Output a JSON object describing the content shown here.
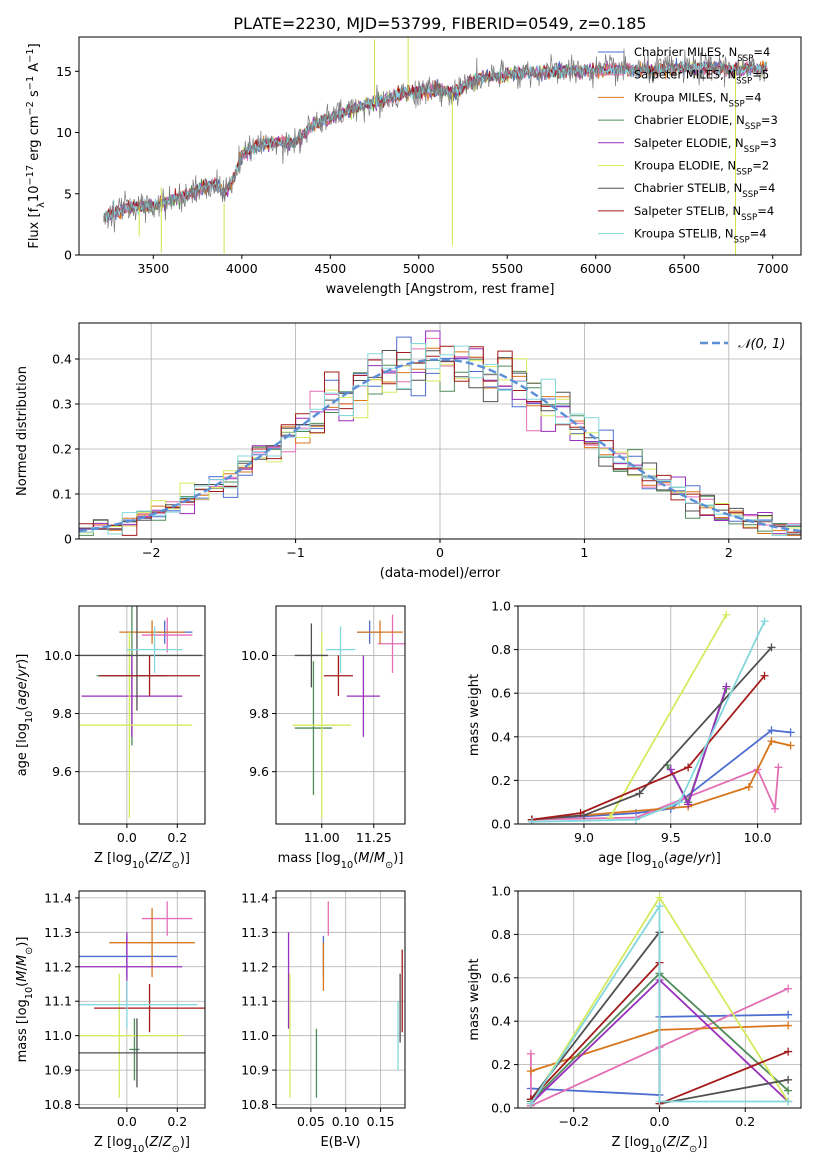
{
  "title": "PLATE=2230, MJD=53799, FIBERID=0549, z=0.185",
  "colors": {
    "Chabrier MILES": "#4c6ed0",
    "Salpeter MILES": "#e36fb5",
    "Kroupa MILES": "#d9761c",
    "Chabrier ELODIE": "#4f8c5a",
    "Salpeter ELODIE": "#9a2fbd",
    "Kroupa ELODIE": "#d6ea5e",
    "Chabrier STELIB": "#505050",
    "Salpeter STELIB": "#a31b1b",
    "Kroupa STELIB": "#84d7dc"
  },
  "legend_labels": [
    "Chabrier MILES, N<sub>SSP</sub>=4",
    "Salpeter MILES, N<sub>SSP</sub>=5",
    "Kroupa MILES, N<sub>SSP</sub>=4",
    "Chabrier ELODIE, N<sub>SSP</sub>=3",
    "Salpeter ELODIE, N<sub>SSP</sub>=3",
    "Kroupa ELODIE, N<sub>SSP</sub>=2",
    "Chabrier STELIB, N<sub>SSP</sub>=4",
    "Salpeter STELIB, N<sub>SSP</sub>=4",
    "Kroupa STELIB, N<sub>SSP</sub>=4"
  ],
  "hist_legend": "𝒩(0, 1)",
  "chart_data": [
    {
      "id": "spectrum",
      "type": "line",
      "title": "PLATE=2230, MJD=53799, FIBERID=0549, z=0.185",
      "xlabel": "wavelength [Angstrom, rest frame]",
      "ylabel": "Flux [f<sub>λ</sub>10<sup>−17</sup> erg cm<sup>−2</sup> s<sup>−1</sup> A<sup>−1</sup>]",
      "xlim": [
        3080,
        7160
      ],
      "ylim": [
        0,
        17.8
      ],
      "xticks": [
        3500,
        4000,
        4500,
        5000,
        5500,
        6000,
        6500,
        7000
      ],
      "yticks": [
        0,
        5,
        10,
        15
      ],
      "legend_position": "top-right",
      "continuum": [
        [
          3220,
          3.1
        ],
        [
          3300,
          3.6
        ],
        [
          3400,
          4.0
        ],
        [
          3500,
          4.0
        ],
        [
          3600,
          4.5
        ],
        [
          3700,
          5.0
        ],
        [
          3800,
          5.6
        ],
        [
          3850,
          5.8
        ],
        [
          3900,
          5.0
        ],
        [
          3930,
          5.6
        ],
        [
          3960,
          6.5
        ],
        [
          4000,
          8.2
        ],
        [
          4100,
          9.0
        ],
        [
          4200,
          9.2
        ],
        [
          4300,
          9.2
        ],
        [
          4400,
          10.6
        ],
        [
          4500,
          11.2
        ],
        [
          4600,
          11.8
        ],
        [
          4700,
          12.3
        ],
        [
          4800,
          12.6
        ],
        [
          4900,
          13.2
        ],
        [
          5000,
          13.3
        ],
        [
          5100,
          13.5
        ],
        [
          5200,
          13.2
        ],
        [
          5300,
          14.2
        ],
        [
          5400,
          14.5
        ],
        [
          5500,
          14.7
        ],
        [
          5600,
          14.9
        ],
        [
          5700,
          14.9
        ],
        [
          5800,
          15.0
        ],
        [
          5900,
          15.1
        ],
        [
          6000,
          15.0
        ],
        [
          6100,
          15.2
        ],
        [
          6200,
          15.1
        ],
        [
          6300,
          15.1
        ],
        [
          6400,
          15.2
        ],
        [
          6500,
          15.2
        ],
        [
          6600,
          15.3
        ],
        [
          6700,
          15.3
        ],
        [
          6800,
          15.1
        ],
        [
          6900,
          15.2
        ],
        [
          6970,
          15.3
        ]
      ],
      "noise_amplitude": 0.6
    },
    {
      "id": "residuals",
      "type": "histogram",
      "xlabel": "(data-model)/error",
      "ylabel": "Normed distribution",
      "xlim": [
        -2.5,
        2.5
      ],
      "ylim": [
        0,
        0.48
      ],
      "xticks": [
        -2,
        -1,
        0,
        1,
        2
      ],
      "yticks": [
        0,
        0.1,
        0.2,
        0.3,
        0.4
      ],
      "bin_width": 0.1,
      "reference": "N(0,1)",
      "legend_position": "top-right",
      "grid": true
    },
    {
      "id": "age_vs_Z",
      "type": "errorbar",
      "xlabel": "Z [log<sub>10</sub>(<tspan font-style='italic'>Z</tspan>/<tspan font-style='italic'>Z</tspan><sub>⊙</sub>)]",
      "ylabel": "age  [log<sub>10</sub>(<tspan font-style='italic'>age</tspan>/<tspan font-style='italic'>yr</tspan>)]",
      "xlim": [
        -0.19,
        0.31
      ],
      "ylim": [
        9.42,
        10.17
      ],
      "xticks": [
        0.0,
        0.2
      ],
      "xticklabels": [
        "0.0",
        "0.2"
      ],
      "yticks": [
        9.6,
        9.8,
        10.0
      ],
      "yticklabels": [
        "9.6",
        "9.8",
        "10.0"
      ],
      "grid": true,
      "points": [
        {
          "model": "Chabrier MILES",
          "x": 0.15,
          "xerr": 0.11,
          "y": 10.08,
          "yerr": 0.04
        },
        {
          "model": "Salpeter MILES",
          "x": 0.16,
          "xerr": 0.1,
          "y": 10.07,
          "yerr": 0.06
        },
        {
          "model": "Kroupa MILES",
          "x": 0.1,
          "xerr": 0.13,
          "y": 10.08,
          "yerr": 0.04
        },
        {
          "model": "Chabrier ELODIE",
          "x": 0.02,
          "xerr": 0.14,
          "y": 9.93,
          "yerr": 0.24
        },
        {
          "model": "Salpeter ELODIE",
          "x": 0.02,
          "xerr": 0.2,
          "y": 9.86,
          "yerr": 0.14
        },
        {
          "model": "Kroupa ELODIE",
          "x": 0.01,
          "xerr": 0.25,
          "y": 9.76,
          "yerr": 0.32
        },
        {
          "model": "Chabrier STELIB",
          "x": 0.04,
          "xerr": 0.26,
          "y": 10.0,
          "yerr": 0.19
        },
        {
          "model": "Salpeter STELIB",
          "x": 0.09,
          "xerr": 0.2,
          "y": 9.93,
          "yerr": 0.07
        },
        {
          "model": "Kroupa STELIB",
          "x": 0.11,
          "xerr": 0.11,
          "y": 10.02,
          "yerr": 0.08
        }
      ]
    },
    {
      "id": "age_vs_mass",
      "type": "errorbar",
      "xlabel": "mass [log<sub>10</sub>(<tspan font-style='italic'>M</tspan>/<tspan font-style='italic'>M</tspan><sub>⊙</sub>)]",
      "ylabel": "",
      "xlim": [
        10.78,
        11.4
      ],
      "ylim": [
        9.42,
        10.17
      ],
      "xticks": [
        11.0,
        11.25
      ],
      "xticklabels": [
        "11.00",
        "11.25"
      ],
      "yticks": [
        9.6,
        9.8,
        10.0
      ],
      "yticklabels": [
        "9.6",
        "9.8",
        "10.0"
      ],
      "grid": true,
      "points": [
        {
          "model": "Chabrier MILES",
          "x": 11.23,
          "xerr": 0.06,
          "y": 10.08,
          "yerr": 0.04
        },
        {
          "model": "Salpeter MILES",
          "x": 11.34,
          "xerr": 0.07,
          "y": 10.04,
          "yerr": 0.1
        },
        {
          "model": "Kroupa MILES",
          "x": 11.28,
          "xerr": 0.11,
          "y": 10.08,
          "yerr": 0.04
        },
        {
          "model": "Chabrier ELODIE",
          "x": 10.96,
          "xerr": 0.09,
          "y": 9.75,
          "yerr": 0.23
        },
        {
          "model": "Salpeter ELODIE",
          "x": 11.2,
          "xerr": 0.08,
          "y": 9.86,
          "yerr": 0.14
        },
        {
          "model": "Kroupa ELODIE",
          "x": 11.0,
          "xerr": 0.14,
          "y": 9.76,
          "yerr": 0.32
        },
        {
          "model": "Chabrier STELIB",
          "x": 10.95,
          "xerr": 0.08,
          "y": 10.0,
          "yerr": 0.11
        },
        {
          "model": "Salpeter STELIB",
          "x": 11.08,
          "xerr": 0.07,
          "y": 9.93,
          "yerr": 0.07
        },
        {
          "model": "Kroupa STELIB",
          "x": 11.09,
          "xerr": 0.07,
          "y": 10.02,
          "yerr": 0.08
        }
      ]
    },
    {
      "id": "weight_vs_age",
      "type": "line",
      "xlabel": "age  [log<sub>10</sub>(<tspan font-style='italic'>age</tspan>/<tspan font-style='italic'>yr</tspan>)]",
      "ylabel": "mass weight",
      "xlim": [
        8.62,
        10.25
      ],
      "ylim": [
        0,
        1.0
      ],
      "xticks": [
        9.0,
        9.5,
        10.0
      ],
      "xticklabels": [
        "9.0",
        "9.5",
        "10.0"
      ],
      "yticks": [
        0,
        0.2,
        0.4,
        0.6,
        0.8,
        1.0
      ],
      "yticklabels": [
        "0.0",
        "0.2",
        "0.4",
        "0.6",
        "0.8",
        "1.0"
      ],
      "grid": true,
      "series": [
        {
          "model": "Chabrier MILES",
          "x": [
            8.7,
            9.3,
            9.5,
            10.08,
            10.19
          ],
          "y": [
            0.02,
            0.05,
            0.07,
            0.43,
            0.42
          ]
        },
        {
          "model": "Salpeter MILES",
          "x": [
            8.7,
            9.3,
            10.0,
            10.1,
            10.12
          ],
          "y": [
            0.02,
            0.03,
            0.25,
            0.07,
            0.26
          ]
        },
        {
          "model": "Kroupa MILES",
          "x": [
            8.7,
            9.6,
            9.95,
            10.08,
            10.19
          ],
          "y": [
            0.02,
            0.08,
            0.17,
            0.38,
            0.36
          ]
        },
        {
          "model": "Chabrier ELODIE",
          "x": [
            9.48,
            9.6,
            9.82
          ],
          "y": [
            0.27,
            0.1,
            0.62
          ]
        },
        {
          "model": "Salpeter ELODIE",
          "x": [
            9.5,
            9.6,
            9.82
          ],
          "y": [
            0.25,
            0.09,
            0.63
          ]
        },
        {
          "model": "Kroupa ELODIE",
          "x": [
            9.15,
            9.82
          ],
          "y": [
            0.03,
            0.96
          ]
        },
        {
          "model": "Chabrier STELIB",
          "x": [
            8.7,
            9.0,
            9.32,
            10.08
          ],
          "y": [
            0.02,
            0.04,
            0.14,
            0.81
          ]
        },
        {
          "model": "Salpeter STELIB",
          "x": [
            8.7,
            8.98,
            9.6,
            10.04
          ],
          "y": [
            0.02,
            0.05,
            0.26,
            0.68
          ]
        },
        {
          "model": "Kroupa STELIB",
          "x": [
            8.7,
            9.3,
            9.55,
            10.04
          ],
          "y": [
            0.01,
            0.02,
            0.1,
            0.93
          ]
        }
      ]
    },
    {
      "id": "mass_vs_Z",
      "type": "errorbar",
      "xlabel": "Z [log<sub>10</sub>(<tspan font-style='italic'>Z</tspan>/<tspan font-style='italic'>Z</tspan><sub>⊙</sub>)]",
      "ylabel": "mass [log<sub>10</sub>(<tspan font-style='italic'>M</tspan>/<tspan font-style='italic'>M</tspan><sub>⊙</sub>)]",
      "xlim": [
        -0.19,
        0.31
      ],
      "ylim": [
        10.79,
        11.42
      ],
      "xticks": [
        0.0,
        0.2
      ],
      "xticklabels": [
        "0.0",
        "0.2"
      ],
      "yticks": [
        10.8,
        10.9,
        11.0,
        11.1,
        11.2,
        11.3,
        11.4
      ],
      "yticklabels": [
        "10.8",
        "10.9",
        "11.0",
        "11.1",
        "11.2",
        "11.3",
        "11.4"
      ],
      "grid": true,
      "points": [
        {
          "model": "Chabrier MILES",
          "x": 0.0,
          "xerr": 0.2,
          "y": 11.23,
          "yerr": 0.06
        },
        {
          "model": "Salpeter MILES",
          "x": 0.16,
          "xerr": 0.1,
          "y": 11.34,
          "yerr": 0.05
        },
        {
          "model": "Kroupa MILES",
          "x": 0.1,
          "xerr": 0.17,
          "y": 11.27,
          "yerr": 0.1
        },
        {
          "model": "Chabrier ELODIE",
          "x": 0.03,
          "xerr": 0.02,
          "y": 10.96,
          "yerr": 0.09
        },
        {
          "model": "Salpeter ELODIE",
          "x": 0.0,
          "xerr": 0.22,
          "y": 11.2,
          "yerr": 0.1
        },
        {
          "model": "Kroupa ELODIE",
          "x": -0.03,
          "xerr": 0.25,
          "y": 11.0,
          "yerr": 0.18
        },
        {
          "model": "Chabrier STELIB",
          "x": 0.04,
          "xerr": 0.27,
          "y": 10.95,
          "yerr": 0.1
        },
        {
          "model": "Salpeter STELIB",
          "x": 0.09,
          "xerr": 0.22,
          "y": 11.08,
          "yerr": 0.07
        },
        {
          "model": "Kroupa STELIB",
          "x": 0.0,
          "xerr": 0.28,
          "y": 11.09,
          "yerr": 0.07
        }
      ]
    },
    {
      "id": "mass_vs_EBV",
      "type": "errorbar",
      "xlabel": "E(B-V)",
      "ylabel": "",
      "xlim": [
        0.0,
        0.185
      ],
      "ylim": [
        10.79,
        11.42
      ],
      "xticks": [
        0.05,
        0.1,
        0.15
      ],
      "xticklabels": [
        "0.05",
        "0.10",
        "0.15"
      ],
      "yticks": [
        10.8,
        10.9,
        11.0,
        11.1,
        11.2,
        11.3,
        11.4
      ],
      "yticklabels": [
        "10.8",
        "10.9",
        "11.0",
        "11.1",
        "11.2",
        "11.3",
        "11.4"
      ],
      "grid": true,
      "points": [
        {
          "model": "Chabrier MILES",
          "x": 0.068,
          "xerr": 0.0,
          "y": 11.23,
          "yerr": 0.06
        },
        {
          "model": "Salpeter MILES",
          "x": 0.075,
          "xerr": 0.0,
          "y": 11.34,
          "yerr": 0.05
        },
        {
          "model": "Kroupa MILES",
          "x": 0.068,
          "xerr": 0.0,
          "y": 11.2,
          "yerr": 0.07
        },
        {
          "model": "Chabrier ELODIE",
          "x": 0.058,
          "xerr": 0.0,
          "y": 10.92,
          "yerr": 0.1
        },
        {
          "model": "Salpeter ELODIE",
          "x": 0.018,
          "xerr": 0.0,
          "y": 11.16,
          "yerr": 0.14
        },
        {
          "model": "Kroupa ELODIE",
          "x": 0.02,
          "xerr": 0.0,
          "y": 11.0,
          "yerr": 0.18
        },
        {
          "model": "Chabrier STELIB",
          "x": 0.178,
          "xerr": 0.0,
          "y": 11.08,
          "yerr": 0.1
        },
        {
          "model": "Salpeter STELIB",
          "x": 0.181,
          "xerr": 0.0,
          "y": 11.13,
          "yerr": 0.12
        },
        {
          "model": "Kroupa STELIB",
          "x": 0.175,
          "xerr": 0.0,
          "y": 11.0,
          "yerr": 0.1
        }
      ]
    },
    {
      "id": "weight_vs_Z",
      "type": "line",
      "xlabel": "Z [log<sub>10</sub>(<tspan font-style='italic'>Z</tspan>/<tspan font-style='italic'>Z</tspan><sub>⊙</sub>)]",
      "ylabel": "mass weight",
      "xlim": [
        -0.33,
        0.33
      ],
      "ylim": [
        0,
        1.0
      ],
      "xticks": [
        -0.2,
        0.0,
        0.2
      ],
      "xticklabels": [
        "−0.2",
        "0.0",
        "0.2"
      ],
      "yticks": [
        0,
        0.2,
        0.4,
        0.6,
        0.8,
        1.0
      ],
      "yticklabels": [
        "0.0",
        "0.2",
        "0.4",
        "0.6",
        "0.8",
        "1.0"
      ],
      "grid": true,
      "series": [
        {
          "model": "Chabrier MILES",
          "x": [
            -0.3,
            0.0,
            0.0,
            0.3
          ],
          "y": [
            0.09,
            0.06,
            0.42,
            0.43
          ]
        },
        {
          "model": "Salpeter MILES",
          "x": [
            -0.3,
            -0.3,
            0.0,
            0.3
          ],
          "y": [
            0.25,
            0.01,
            0.28,
            0.55
          ]
        },
        {
          "model": "Kroupa MILES",
          "x": [
            -0.3,
            0.0,
            0.3
          ],
          "y": [
            0.17,
            0.36,
            0.38
          ]
        },
        {
          "model": "Chabrier ELODIE",
          "x": [
            -0.3,
            0.0,
            0.3
          ],
          "y": [
            0.03,
            0.62,
            0.08
          ]
        },
        {
          "model": "Salpeter ELODIE",
          "x": [
            -0.3,
            0.0,
            0.3
          ],
          "y": [
            0.02,
            0.59,
            0.03
          ]
        },
        {
          "model": "Kroupa ELODIE",
          "x": [
            -0.3,
            0.0,
            0.3
          ],
          "y": [
            0.02,
            0.97,
            0.03
          ]
        },
        {
          "model": "Chabrier STELIB",
          "x": [
            -0.3,
            0.0,
            0.0,
            0.3
          ],
          "y": [
            0.04,
            0.81,
            0.02,
            0.13
          ]
        },
        {
          "model": "Salpeter STELIB",
          "x": [
            -0.3,
            0.0,
            0.0,
            0.3
          ],
          "y": [
            0.04,
            0.67,
            0.02,
            0.26
          ]
        },
        {
          "model": "Kroupa STELIB",
          "x": [
            -0.3,
            0.0,
            0.0,
            0.3
          ],
          "y": [
            0.02,
            0.93,
            0.03,
            0.03
          ]
        }
      ]
    }
  ]
}
